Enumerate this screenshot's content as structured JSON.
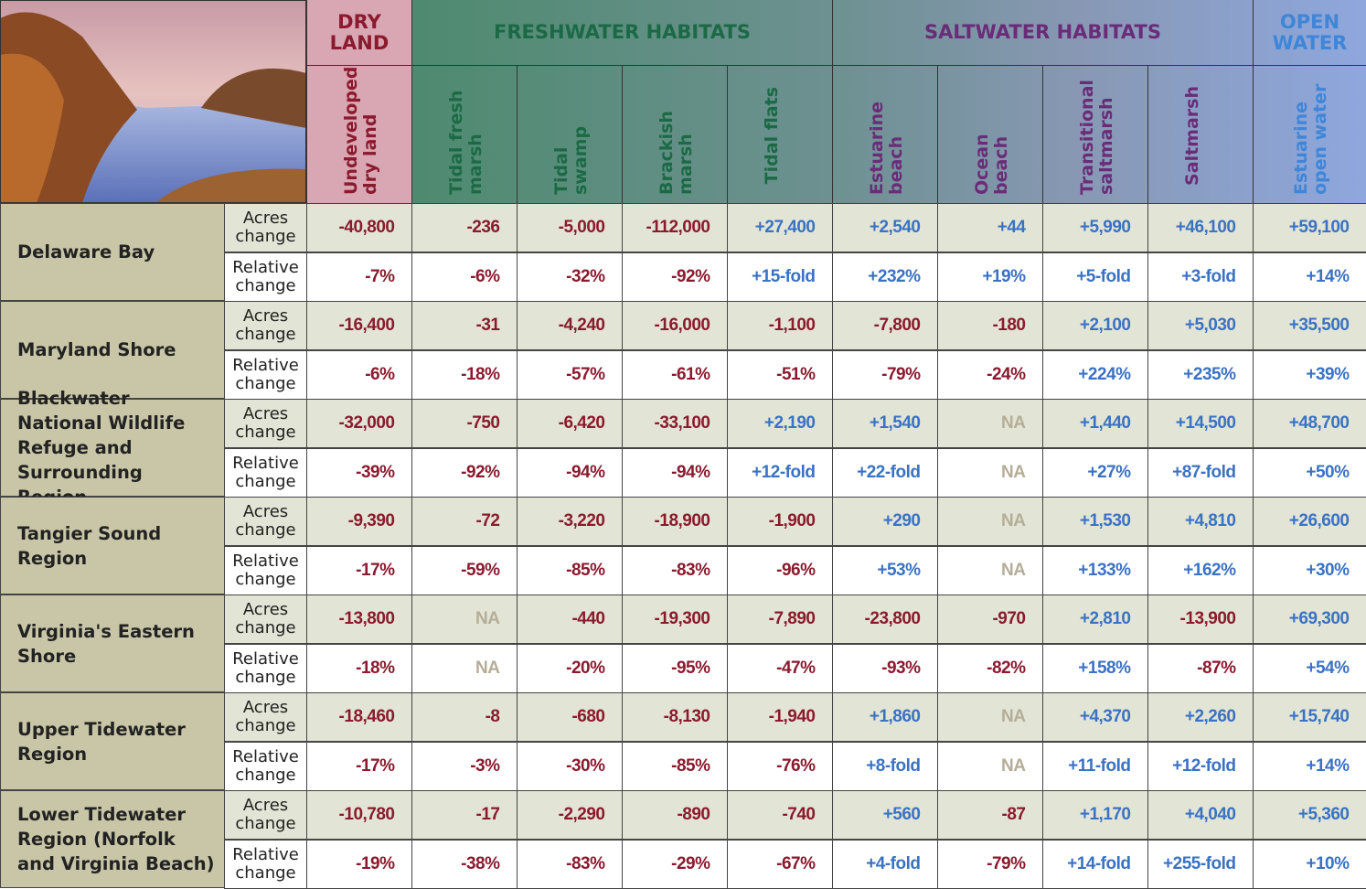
{
  "header": {
    "groups": [
      {
        "label": "DRY LAND",
        "span": 1,
        "color": "#8b1a2e"
      },
      {
        "label": "FRESHWATER HABITATS",
        "span": 4,
        "color": "#1b6a45"
      },
      {
        "label": "SALTWATER HABITATS",
        "span": 4,
        "color": "#6a2c78"
      },
      {
        "label": "OPEN WATER",
        "span": 1,
        "color": "#3f86d8"
      }
    ],
    "columns": [
      "Undeveloped dry land",
      "Tidal fresh marsh",
      "Tidal swamp",
      "Brackish marsh",
      "Tidal flats",
      "Estuarine beach",
      "Ocean beach",
      "Transitional saltmarsh",
      "Saltmarsh",
      "Estuarine open water"
    ]
  },
  "table": {
    "regions": [
      {
        "name": "Delaware Bay",
        "rows": [
          {
            "label": "Acres change",
            "cells": [
              "-40,800",
              "-236",
              "-5,000",
              "-112,000",
              "+27,400",
              "+2,540",
              "+44",
              "+5,990",
              "+46,100",
              "+59,100"
            ]
          },
          {
            "label": "Relative change",
            "cells": [
              "-7%",
              "-6%",
              "-32%",
              "-92%",
              "+15-fold",
              "+232%",
              "+19%",
              "+5-fold",
              "+3-fold",
              "+14%"
            ]
          }
        ]
      },
      {
        "name": "Maryland Shore",
        "rows": [
          {
            "label": "Acres change",
            "cells": [
              "-16,400",
              "-31",
              "-4,240",
              "-16,000",
              "-1,100",
              "-7,800",
              "-180",
              "+2,100",
              "+5,030",
              "+35,500"
            ]
          },
          {
            "label": "Relative change",
            "cells": [
              "-6%",
              "-18%",
              "-57%",
              "-61%",
              "-51%",
              "-79%",
              "-24%",
              "+224%",
              "+235%",
              "+39%"
            ]
          }
        ]
      },
      {
        "name": "Blackwater National Wildlife Refuge and Surrounding Region",
        "rows": [
          {
            "label": "Acres change",
            "cells": [
              "-32,000",
              "-750",
              "-6,420",
              "-33,100",
              "+2,190",
              "+1,540",
              "NA",
              "+1,440",
              "+14,500",
              "+48,700"
            ]
          },
          {
            "label": "Relative change",
            "cells": [
              "-39%",
              "-92%",
              "-94%",
              "-94%",
              "+12-fold",
              "+22-fold",
              "NA",
              "+27%",
              "+87-fold",
              "+50%"
            ]
          }
        ]
      },
      {
        "name": "Tangier Sound Region",
        "rows": [
          {
            "label": "Acres change",
            "cells": [
              "-9,390",
              "-72",
              "-3,220",
              "-18,900",
              "-1,900",
              "+290",
              "NA",
              "+1,530",
              "+4,810",
              "+26,600"
            ]
          },
          {
            "label": "Relative change",
            "cells": [
              "-17%",
              "-59%",
              "-85%",
              "-83%",
              "-96%",
              "+53%",
              "NA",
              "+133%",
              "+162%",
              "+30%"
            ]
          }
        ]
      },
      {
        "name": "Virginia's Eastern Shore",
        "rows": [
          {
            "label": "Acres change",
            "cells": [
              "-13,800",
              "NA",
              "-440",
              "-19,300",
              "-7,890",
              "-23,800",
              "-970",
              "+2,810",
              "-13,900",
              "+69,300"
            ]
          },
          {
            "label": "Relative change",
            "cells": [
              "-18%",
              "NA",
              "-20%",
              "-95%",
              "-47%",
              "-93%",
              "-82%",
              "+158%",
              "-87%",
              "+54%"
            ]
          }
        ]
      },
      {
        "name": "Upper Tidewater Region",
        "rows": [
          {
            "label": "Acres change",
            "cells": [
              "-18,460",
              "-8",
              "-680",
              "-8,130",
              "-1,940",
              "+1,860",
              "NA",
              "+4,370",
              "+2,260",
              "+15,740"
            ]
          },
          {
            "label": "Relative change",
            "cells": [
              "-17%",
              "-3%",
              "-30%",
              "-85%",
              "-76%",
              "+8-fold",
              "NA",
              "+11-fold",
              "+12-fold",
              "+14%"
            ]
          }
        ]
      },
      {
        "name": "Lower Tidewater Region (Norfolk and Virginia Beach)",
        "rows": [
          {
            "label": "Acres change",
            "cells": [
              "-10,780",
              "-17",
              "-2,290",
              "-890",
              "-740",
              "+560",
              "-87",
              "+1,170",
              "+4,040",
              "+5,360"
            ]
          },
          {
            "label": "Relative change",
            "cells": [
              "-19%",
              "-38%",
              "-83%",
              "-29%",
              "-67%",
              "+4-fold",
              "-79%",
              "+14-fold",
              "+255-fold",
              "+10%"
            ]
          }
        ]
      }
    ]
  }
}
